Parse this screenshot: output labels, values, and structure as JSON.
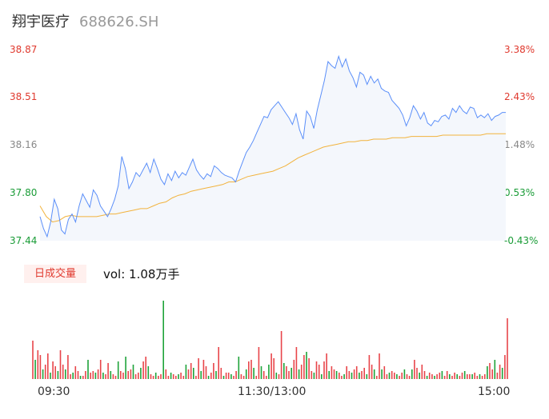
{
  "header": {
    "name": "翔宇医疗",
    "code": "688626.SH"
  },
  "price_axis": {
    "left_labels": [
      "38.87",
      "38.51",
      "38.16",
      "37.80",
      "37.44"
    ],
    "right_labels": [
      "3.38%",
      "2.43%",
      "1.48%",
      "0.53%",
      "-0.43%"
    ],
    "colors": [
      "#e03a2f",
      "#e03a2f",
      "#888888",
      "#1a9c37",
      "#1a9c37"
    ]
  },
  "volume_panel": {
    "badge": "日成交量",
    "info": "vol: 1.08万手"
  },
  "time_axis": {
    "labels": [
      "09:30",
      "11:30/13:00",
      "15:00"
    ]
  },
  "colors": {
    "price_line": "#5b8ff9",
    "avg_line": "#f2b33d",
    "up": "#e8454a",
    "down": "#1fa33a",
    "area": "#f4f7fc"
  },
  "chart_data": [
    {
      "type": "line",
      "series": [
        {
          "values": [
            37.62,
            37.53,
            37.47,
            37.58,
            37.75,
            37.68,
            37.52,
            37.49,
            37.6,
            37.64,
            37.58,
            37.7,
            37.79,
            37.74,
            37.69,
            37.82,
            37.78,
            37.7,
            37.66,
            37.62,
            37.68,
            37.75,
            37.85,
            38.07,
            37.98,
            37.83,
            37.88,
            37.95,
            37.92,
            37.97,
            38.02,
            37.95,
            38.05,
            37.98,
            37.9,
            37.86,
            37.94,
            37.89,
            37.96,
            37.91,
            37.95,
            37.93,
            37.99,
            38.05,
            37.97,
            37.93,
            37.9,
            37.94,
            37.92,
            38.0,
            37.98,
            37.95,
            37.93,
            37.92,
            37.91,
            37.88,
            37.96,
            38.03,
            38.1,
            38.14,
            38.19,
            38.25,
            38.31,
            38.37,
            38.36,
            38.42,
            38.45,
            38.48,
            38.44,
            38.4,
            38.36,
            38.31,
            38.39,
            38.27,
            38.2,
            38.41,
            38.37,
            38.28,
            38.42,
            38.53,
            38.64,
            38.78,
            38.75,
            38.73,
            38.82,
            38.74,
            38.8,
            38.71,
            38.66,
            38.59,
            38.7,
            38.68,
            38.61,
            38.67,
            38.62,
            38.65,
            38.58,
            38.56,
            38.55,
            38.49,
            38.46,
            38.43,
            38.38,
            38.3,
            38.36,
            38.45,
            38.41,
            38.35,
            38.4,
            38.32,
            38.3,
            38.34,
            38.33,
            38.37,
            38.38,
            38.35,
            38.43,
            38.4,
            38.45,
            38.41,
            38.39,
            38.44,
            38.43,
            38.36,
            38.38,
            38.36,
            38.39,
            38.34,
            38.37,
            38.38,
            38.4,
            38.4
          ],
          "color": "#5b8ff9"
        },
        {
          "values": [
            37.7,
            37.62,
            37.58,
            37.59,
            37.62,
            37.63,
            37.62,
            37.62,
            37.62,
            37.62,
            37.63,
            37.64,
            37.64,
            37.65,
            37.66,
            37.67,
            37.68,
            37.68,
            37.7,
            37.72,
            37.73,
            37.76,
            37.78,
            37.79,
            37.81,
            37.82,
            37.83,
            37.84,
            37.85,
            37.86,
            37.88,
            37.88,
            37.9,
            37.92,
            37.93,
            37.94,
            37.95,
            37.96,
            37.98,
            38.0,
            38.03,
            38.06,
            38.08,
            38.1,
            38.12,
            38.14,
            38.15,
            38.16,
            38.17,
            38.18,
            38.18,
            38.19,
            38.19,
            38.2,
            38.2,
            38.2,
            38.21,
            38.21,
            38.21,
            38.22,
            38.22,
            38.22,
            38.22,
            38.22,
            38.23,
            38.23,
            38.23,
            38.23,
            38.23,
            38.23,
            38.23,
            38.24,
            38.24,
            38.24,
            38.24
          ],
          "color": "#f2b33d"
        }
      ],
      "ylim": [
        37.44,
        38.87
      ]
    },
    {
      "type": "bar",
      "values": [
        24,
        12,
        18,
        15,
        6,
        9,
        16,
        4,
        11,
        8,
        5,
        18,
        9,
        6,
        15,
        3,
        4,
        8,
        5,
        2,
        2,
        5,
        12,
        4,
        5,
        4,
        6,
        12,
        4,
        3,
        10,
        5,
        3,
        2,
        11,
        5,
        4,
        14,
        5,
        6,
        9,
        3,
        4,
        7,
        11,
        14,
        8,
        3,
        2,
        4,
        2,
        3,
        49,
        6,
        2,
        4,
        3,
        2,
        3,
        4,
        2,
        9,
        6,
        10,
        7,
        2,
        13,
        5,
        12,
        8,
        2,
        4,
        10,
        5,
        20,
        7,
        2,
        4,
        4,
        3,
        2,
        5,
        14,
        3,
        2,
        6,
        11,
        12,
        7,
        2,
        20,
        8,
        5,
        2,
        9,
        16,
        13,
        4,
        3,
        30,
        10,
        8,
        5,
        7,
        12,
        20,
        6,
        9,
        15,
        17,
        13,
        5,
        4,
        11,
        9,
        3,
        11,
        16,
        5,
        8,
        6,
        5,
        4,
        2,
        3,
        8,
        5,
        4,
        6,
        8,
        4,
        5,
        7,
        3,
        15,
        9,
        6,
        2,
        16,
        6,
        8,
        3,
        4,
        5,
        4,
        3,
        2,
        4,
        6,
        3,
        2,
        6,
        12,
        7,
        4,
        9,
        5,
        2,
        4,
        3,
        2,
        3,
        4,
        5,
        2,
        5,
        3,
        2,
        4,
        3,
        2,
        4,
        5,
        3,
        3,
        3,
        4,
        2,
        3,
        2,
        3,
        8,
        10,
        6,
        12,
        4,
        9,
        7,
        15,
        38
      ],
      "colors": "alternating up/down by tick"
    }
  ]
}
